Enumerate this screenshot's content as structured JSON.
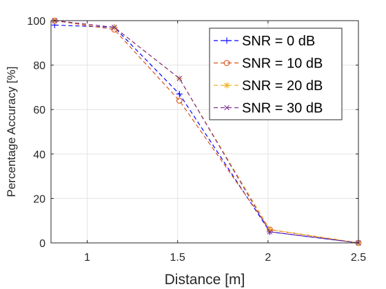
{
  "chart_data": {
    "type": "line",
    "title": "",
    "xlabel": "Distance [m]",
    "ylabel": "Percentage Accuracy [%]",
    "xlim": [
      0.8,
      2.5
    ],
    "ylim": [
      0,
      100
    ],
    "xticks": [
      1,
      1.5,
      2,
      2.5
    ],
    "yticks": [
      0,
      20,
      40,
      60,
      80,
      100
    ],
    "xtick_labels": [
      "1",
      "1.5",
      "2",
      "2.5"
    ],
    "ytick_labels": [
      "0",
      "20",
      "40",
      "60",
      "80",
      "100"
    ],
    "grid": true,
    "legend_position": "top-right",
    "line_style": "dashed",
    "series": [
      {
        "name": "SNR = 0 dB",
        "color": "#0000ff",
        "marker": "plus",
        "x": [
          0.82,
          1.15,
          1.51,
          2.01,
          2.5
        ],
        "y": [
          98,
          97,
          67,
          5,
          0
        ]
      },
      {
        "name": "SNR = 10 dB",
        "color": "#d95319",
        "marker": "circle",
        "x": [
          0.82,
          1.15,
          1.51,
          2.01,
          2.5
        ],
        "y": [
          100,
          96,
          64,
          6,
          0
        ]
      },
      {
        "name": "SNR = 20 dB",
        "color": "#edb120",
        "marker": "asterisk",
        "x": [
          0.82,
          1.15,
          1.51,
          2.01,
          2.5
        ],
        "y": [
          100,
          97,
          74,
          6,
          0
        ]
      },
      {
        "name": "SNR = 30 dB",
        "color": "#7e2f8e",
        "marker": "cross",
        "x": [
          0.82,
          1.15,
          1.51,
          2.01,
          2.5
        ],
        "y": [
          100,
          97,
          74,
          5,
          0
        ]
      }
    ]
  }
}
